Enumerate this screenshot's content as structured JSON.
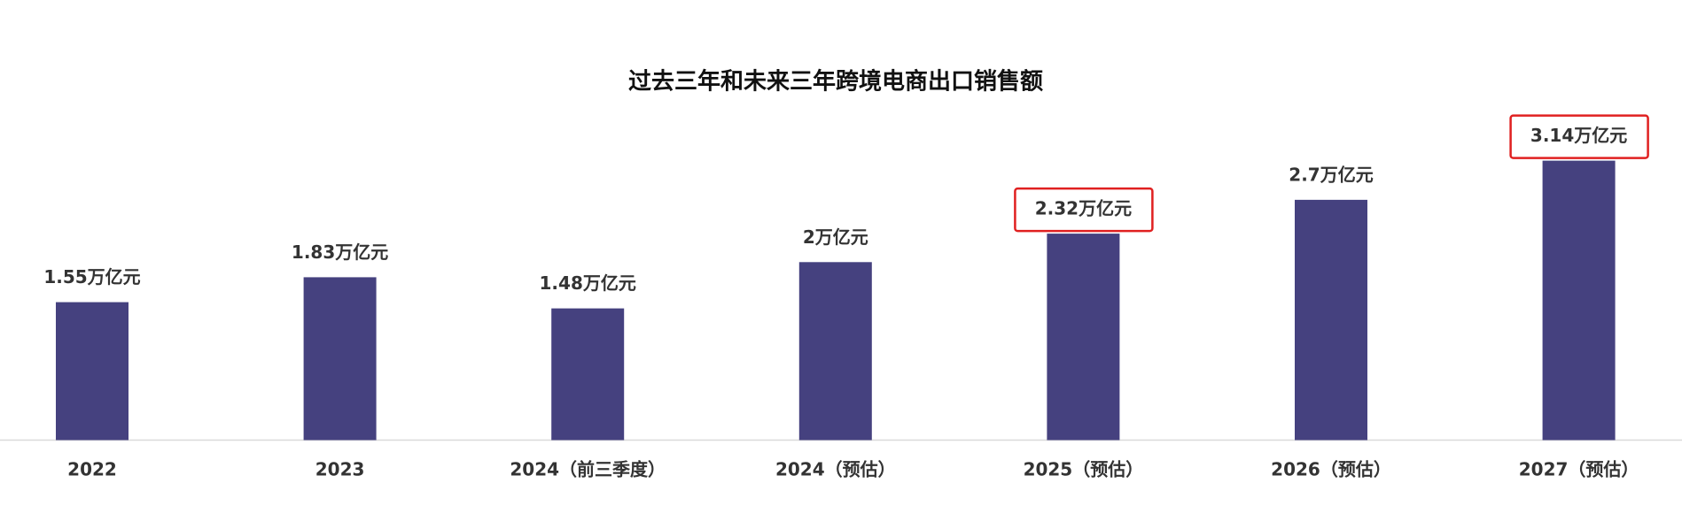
{
  "chart_data": {
    "type": "bar",
    "title": "过去三年和未来三年跨境电商出口销售额",
    "categories": [
      "2022",
      "2023",
      "2024（前三季度）",
      "2024（预估）",
      "2025（预估）",
      "2026（预估）",
      "2027（预估）"
    ],
    "values": [
      1.55,
      1.83,
      1.48,
      2,
      2.32,
      2.7,
      3.14
    ],
    "value_labels": [
      "1.55万亿元",
      "1.83万亿元",
      "1.48万亿元",
      "2万亿元",
      "2.32万亿元",
      "2.7万亿元",
      "3.14万亿元"
    ],
    "highlight": [
      false,
      false,
      false,
      false,
      true,
      false,
      true
    ],
    "color": "#45417f",
    "highlight_color": "#e02020"
  }
}
